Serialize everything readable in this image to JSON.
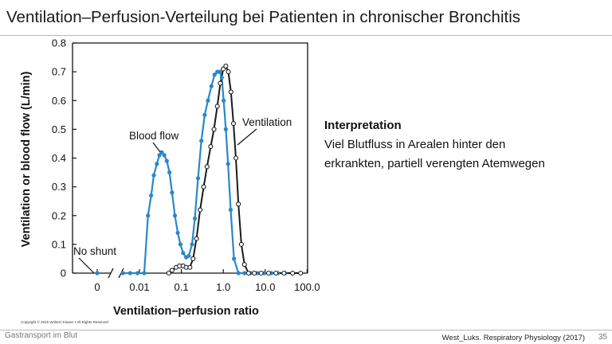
{
  "slide": {
    "title": "Ventilation–Perfusion-Verteilung bei Patienten in chronischer Bronchitis",
    "interpretation_heading": "Interpretation",
    "interpretation_lines": [
      "Viel Blutfluss in Arealen hinter den",
      "erkrankten, partiell verengten Atemwegen"
    ],
    "copyright": "Copyright © 2016 Wolters Kluwer • All Rights Reserved",
    "footer_left": "Gastransport im Blut",
    "footer_right": "West_Luks. Respiratory Physiology (2017)",
    "page_number": "35"
  },
  "chart_data": {
    "type": "line",
    "xlabel": "Ventilation–perfusion ratio",
    "ylabel": "Ventilation or blood flow (L/min)",
    "x_scale": "log (with separate zero point)",
    "x_ticks": [
      "0",
      "0.01",
      "0.1",
      "1.0",
      "10.0",
      "100.0"
    ],
    "y_ticks": [
      "0",
      "0.1",
      "0.2",
      "0.3",
      "0.4",
      "0.5",
      "0.6",
      "0.7",
      "0.8"
    ],
    "ylim": [
      0,
      0.8
    ],
    "colors": {
      "blood_flow": "#2b87c8",
      "ventilation": "#1a1a1a"
    },
    "annotations": {
      "blood_flow": "Blood flow",
      "ventilation": "Ventilation",
      "no_shunt": "No shunt"
    },
    "shunt_point": {
      "x": 0,
      "y": 0
    },
    "series": [
      {
        "name": "Blood flow",
        "x": [
          0.004,
          0.006,
          0.009,
          0.013,
          0.016,
          0.019,
          0.022,
          0.026,
          0.03,
          0.034,
          0.039,
          0.045,
          0.052,
          0.06,
          0.07,
          0.082,
          0.095,
          0.11,
          0.13,
          0.15,
          0.18,
          0.21,
          0.25,
          0.3,
          0.36,
          0.43,
          0.52,
          0.62,
          0.72,
          0.82,
          0.92,
          1.02,
          1.15,
          1.3,
          1.5,
          1.8,
          2.3,
          3.2,
          4.5,
          6.5,
          9.5,
          14,
          20,
          30,
          45,
          70
        ],
        "y": [
          0.0,
          0.0,
          0.0,
          0.0,
          0.2,
          0.27,
          0.34,
          0.38,
          0.41,
          0.42,
          0.41,
          0.39,
          0.35,
          0.28,
          0.2,
          0.14,
          0.1,
          0.07,
          0.055,
          0.06,
          0.1,
          0.19,
          0.33,
          0.46,
          0.55,
          0.6,
          0.65,
          0.69,
          0.7,
          0.7,
          0.68,
          0.6,
          0.5,
          0.38,
          0.22,
          0.05,
          0.0,
          0.0,
          0.0,
          0.0,
          0.0,
          0.0,
          0.0,
          0.0,
          0.0,
          0.0
        ]
      },
      {
        "name": "Ventilation",
        "x": [
          0.05,
          0.06,
          0.075,
          0.09,
          0.11,
          0.13,
          0.16,
          0.19,
          0.23,
          0.28,
          0.34,
          0.41,
          0.5,
          0.6,
          0.72,
          0.85,
          1.0,
          1.15,
          1.32,
          1.52,
          1.75,
          2.0,
          2.3,
          2.7,
          3.2,
          4.0,
          5.5,
          8.0,
          12,
          18,
          28,
          45,
          70
        ],
        "y": [
          0.0,
          0.01,
          0.02,
          0.025,
          0.025,
          0.02,
          0.02,
          0.05,
          0.12,
          0.22,
          0.3,
          0.37,
          0.44,
          0.5,
          0.58,
          0.66,
          0.71,
          0.72,
          0.7,
          0.63,
          0.52,
          0.4,
          0.24,
          0.1,
          0.03,
          0.0,
          0.0,
          0.0,
          0.0,
          0.0,
          0.0,
          0.0,
          0.0
        ]
      }
    ]
  }
}
